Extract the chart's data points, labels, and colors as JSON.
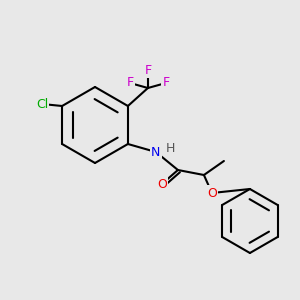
{
  "background_color": "#e8e8e8",
  "bond_color": "#000000",
  "bond_lw": 1.5,
  "atom_colors": {
    "F": "#cc00cc",
    "Cl": "#00aa00",
    "N": "#0000ee",
    "O": "#ee0000",
    "H": "#555555"
  },
  "figsize": [
    3.0,
    3.0
  ],
  "dpi": 100
}
